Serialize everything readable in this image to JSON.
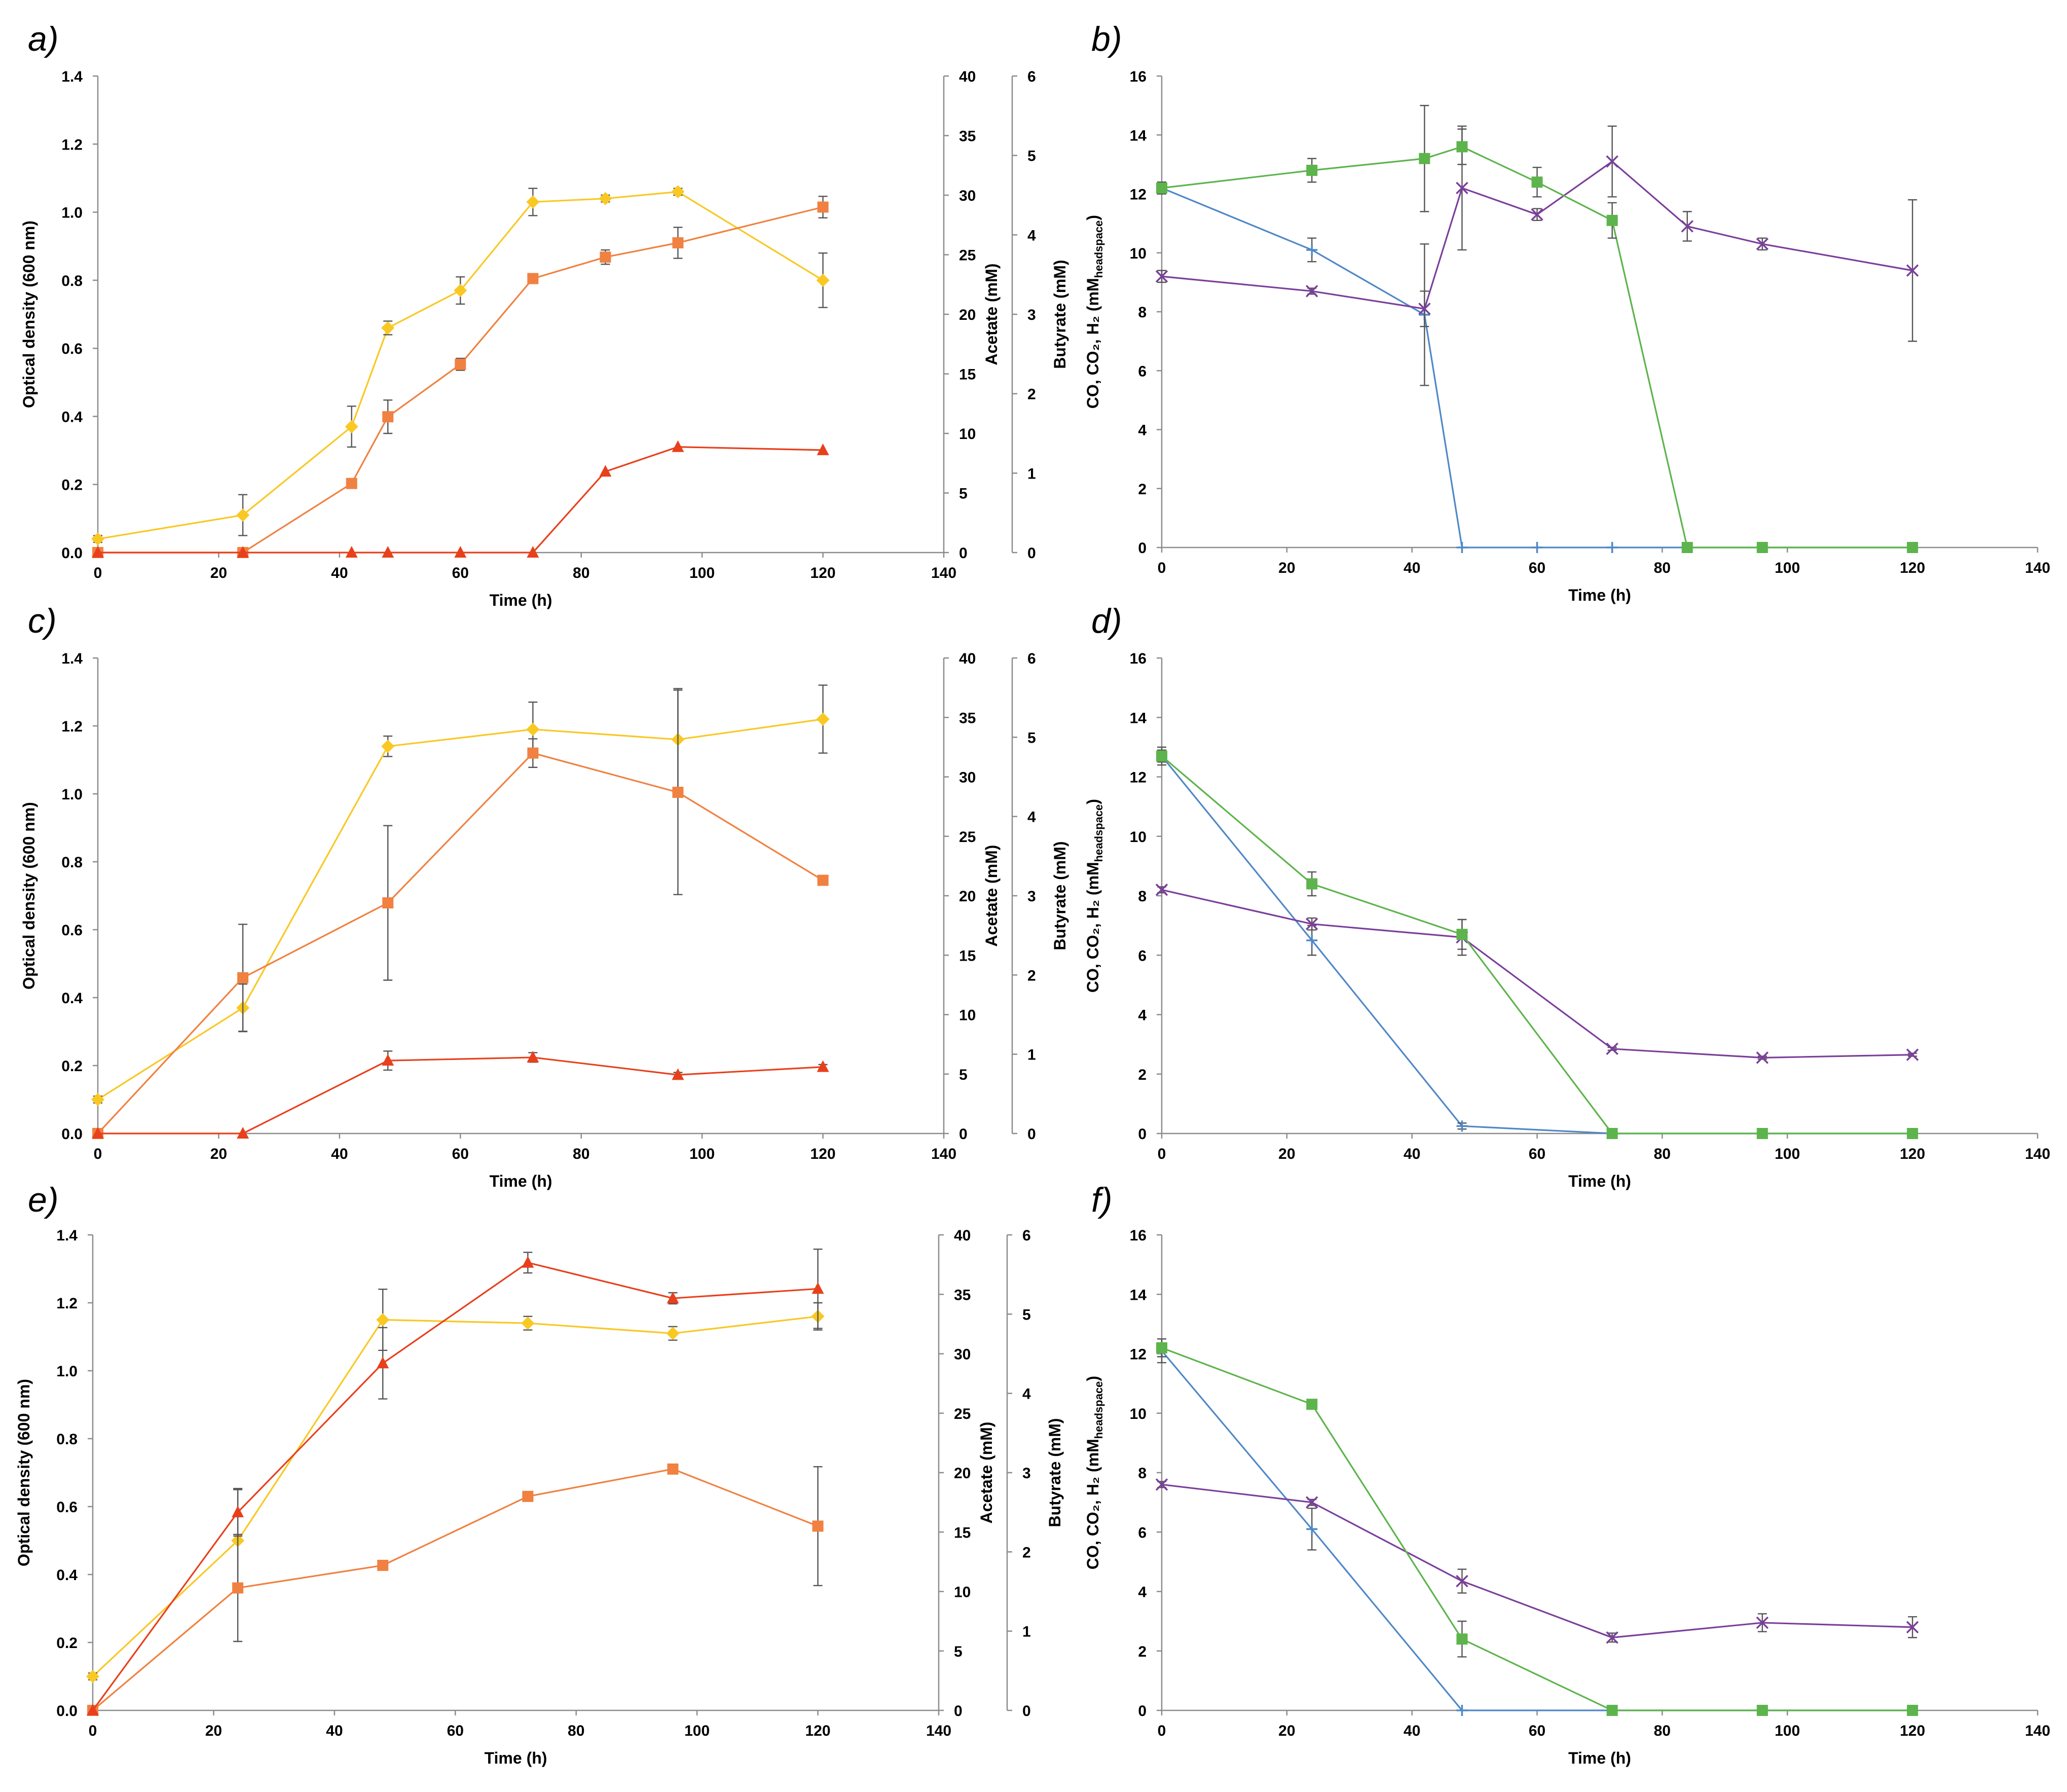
{
  "figure_title": "",
  "colors": {
    "biomass": "#F9C823",
    "acetate": "#F08141",
    "butyrate": "#E8401C",
    "co": "#4F88C7",
    "co2": "#7B3F9B",
    "h2": "#5DB44C",
    "axis": "#8C8C8C",
    "errbar": "#555555"
  },
  "chart_data": [
    {
      "panel": "a)",
      "type": "line",
      "xlabel": "Time (h)",
      "xlim": [
        0,
        140
      ],
      "xticks": [
        "0",
        "20",
        "40",
        "60",
        "80",
        "100",
        "120",
        "140"
      ],
      "axes": {
        "left": {
          "label": "Optical density (600 nm)",
          "lim": [
            0,
            1.4
          ],
          "ticks": [
            "0.0",
            "0.2",
            "0.4",
            "0.6",
            "0.8",
            "1.0",
            "1.2",
            "1.4"
          ]
        },
        "right1": {
          "label": "Acetate (mM)",
          "lim": [
            0,
            40
          ],
          "ticks": [
            "0",
            "5",
            "10",
            "15",
            "20",
            "25",
            "30",
            "35",
            "40"
          ]
        },
        "right2": {
          "label": "Butyrate (mM)",
          "lim": [
            0,
            6
          ],
          "ticks": [
            "0",
            "1",
            "2",
            "3",
            "4",
            "5",
            "6"
          ]
        }
      },
      "series": [
        {
          "name": "Optical density",
          "axis": "left",
          "color": "#F9C823",
          "marker": "diamond",
          "x": [
            0,
            24,
            42,
            48,
            60,
            72,
            84,
            96,
            120
          ],
          "y": [
            0.04,
            0.11,
            0.37,
            0.66,
            0.77,
            1.03,
            1.04,
            1.06,
            0.8
          ],
          "err": [
            0.01,
            0.06,
            0.06,
            0.02,
            0.04,
            0.04,
            0.01,
            0.01,
            0.08
          ]
        },
        {
          "name": "Acetate",
          "axis": "right1",
          "color": "#F08141",
          "marker": "square",
          "x": [
            0,
            24,
            42,
            48,
            60,
            72,
            84,
            96,
            120
          ],
          "y": [
            0,
            0,
            5.8,
            11.4,
            15.8,
            23.0,
            24.8,
            26.0,
            29.0
          ],
          "err": [
            0,
            0,
            0.3,
            1.4,
            0.5,
            0.3,
            0.6,
            1.3,
            0.9
          ]
        },
        {
          "name": "Butyrate",
          "axis": "right2",
          "color": "#E8401C",
          "marker": "triangle",
          "x": [
            0,
            24,
            42,
            48,
            60,
            72,
            84,
            96,
            120
          ],
          "y": [
            0,
            0,
            0,
            0,
            0,
            0,
            1.02,
            1.33,
            1.29
          ],
          "err": [
            0,
            0,
            0,
            0,
            0,
            0,
            0,
            0,
            0
          ]
        }
      ]
    },
    {
      "panel": "b)",
      "type": "line",
      "xlabel": "Time (h)",
      "xlim": [
        0,
        140
      ],
      "xticks": [
        "0",
        "20",
        "40",
        "60",
        "80",
        "100",
        "120",
        "140"
      ],
      "axes": {
        "left": {
          "label": "CO, CO₂, H₂ (mMheadspace)",
          "lim": [
            0,
            16
          ],
          "ticks": [
            "0",
            "2",
            "4",
            "6",
            "8",
            "10",
            "12",
            "14",
            "16"
          ]
        }
      },
      "series": [
        {
          "name": "CO",
          "axis": "left",
          "color": "#4F88C7",
          "marker": "plus",
          "x": [
            0,
            24,
            42,
            48,
            60,
            72,
            84,
            96,
            120
          ],
          "y": [
            12.2,
            10.1,
            7.9,
            0,
            0,
            0,
            0,
            0,
            0
          ],
          "err": [
            0,
            0.4,
            2.4,
            0,
            0,
            0,
            0,
            0,
            0
          ]
        },
        {
          "name": "CO2",
          "axis": "left",
          "color": "#7B3F9B",
          "marker": "cross",
          "x": [
            0,
            24,
            42,
            48,
            60,
            72,
            84,
            96,
            120
          ],
          "y": [
            9.2,
            8.7,
            8.1,
            12.2,
            11.3,
            13.1,
            10.9,
            10.3,
            9.4
          ],
          "err": [
            0.2,
            0.1,
            0.6,
            2.1,
            0.2,
            1.2,
            0.5,
            0.2,
            2.4
          ]
        },
        {
          "name": "H2",
          "axis": "left",
          "color": "#5DB44C",
          "marker": "square",
          "x": [
            0,
            24,
            42,
            48,
            60,
            72,
            84,
            96,
            120
          ],
          "y": [
            12.2,
            12.8,
            13.2,
            13.6,
            12.4,
            11.1,
            0,
            0,
            0
          ],
          "err": [
            0.2,
            0.4,
            1.8,
            0.6,
            0.5,
            0.6,
            0,
            0,
            0
          ]
        }
      ]
    },
    {
      "panel": "c)",
      "type": "line",
      "xlabel": "Time (h)",
      "xlim": [
        0,
        140
      ],
      "xticks": [
        "0",
        "20",
        "40",
        "60",
        "80",
        "100",
        "120",
        "140"
      ],
      "axes": {
        "left": {
          "label": "Optical density (600 nm)",
          "lim": [
            0,
            1.4
          ],
          "ticks": [
            "0.0",
            "0.2",
            "0.4",
            "0.6",
            "0.8",
            "1.0",
            "1.2",
            "1.4"
          ]
        },
        "right1": {
          "label": "Acetate (mM)",
          "lim": [
            0,
            40
          ],
          "ticks": [
            "0",
            "5",
            "10",
            "15",
            "20",
            "25",
            "30",
            "35",
            "40"
          ]
        },
        "right2": {
          "label": "Butyrate (mM)",
          "lim": [
            0,
            6
          ],
          "ticks": [
            "0",
            "1",
            "2",
            "3",
            "4",
            "5",
            "6"
          ]
        }
      },
      "series": [
        {
          "name": "Optical density",
          "axis": "left",
          "color": "#F9C823",
          "marker": "diamond",
          "x": [
            0,
            24,
            48,
            72,
            96,
            120
          ],
          "y": [
            0.1,
            0.37,
            1.14,
            1.19,
            1.16,
            1.22
          ],
          "err": [
            0.01,
            0.07,
            0.03,
            0.08,
            0.15,
            0.1
          ]
        },
        {
          "name": "Acetate",
          "axis": "right1",
          "color": "#F08141",
          "marker": "square",
          "x": [
            0,
            24,
            48,
            72,
            96,
            120
          ],
          "y": [
            0,
            13.1,
            19.4,
            32.0,
            28.7,
            21.3
          ],
          "err": [
            0,
            4.5,
            6.5,
            1.2,
            8.6,
            0.2
          ]
        },
        {
          "name": "Butyrate",
          "axis": "right2",
          "color": "#E8401C",
          "marker": "triangle",
          "x": [
            0,
            24,
            48,
            72,
            96,
            120
          ],
          "y": [
            0,
            0,
            0.92,
            0.96,
            0.74,
            0.84
          ],
          "err": [
            0,
            0,
            0.12,
            0.06,
            0.03,
            0.03
          ]
        }
      ]
    },
    {
      "panel": "d)",
      "type": "line",
      "xlabel": "Time (h)",
      "xlim": [
        0,
        140
      ],
      "xticks": [
        "0",
        "20",
        "40",
        "60",
        "80",
        "100",
        "120",
        "140"
      ],
      "axes": {
        "left": {
          "label": "CO, CO₂, H₂ (mMheadspace)",
          "lim": [
            0,
            16
          ],
          "ticks": [
            "0",
            "2",
            "4",
            "6",
            "8",
            "10",
            "12",
            "14",
            "16"
          ]
        }
      },
      "series": [
        {
          "name": "CO",
          "axis": "left",
          "color": "#4F88C7",
          "marker": "plus",
          "x": [
            0,
            24,
            48,
            72,
            96,
            120
          ],
          "y": [
            12.7,
            6.5,
            0.25,
            0,
            0,
            0
          ],
          "err": [
            0.3,
            0.5,
            0.1,
            0,
            0,
            0
          ]
        },
        {
          "name": "CO2",
          "axis": "left",
          "color": "#7B3F9B",
          "marker": "cross",
          "x": [
            0,
            24,
            48,
            72,
            96,
            120
          ],
          "y": [
            8.2,
            7.05,
            6.6,
            2.85,
            2.55,
            2.65
          ],
          "err": [
            0.1,
            0.2,
            0.6,
            0.05,
            0.05,
            0.05
          ]
        },
        {
          "name": "H2",
          "axis": "left",
          "color": "#5DB44C",
          "marker": "square",
          "x": [
            0,
            24,
            48,
            72,
            96,
            120
          ],
          "y": [
            12.7,
            8.4,
            6.7,
            0,
            0,
            0
          ],
          "err": [
            0.2,
            0.4,
            0.5,
            0,
            0,
            0
          ]
        }
      ]
    },
    {
      "panel": "e)",
      "type": "line",
      "xlabel": "Time (h)",
      "xlim": [
        0,
        140
      ],
      "xticks": [
        "0",
        "20",
        "40",
        "60",
        "80",
        "100",
        "120",
        "140"
      ],
      "axes": {
        "left": {
          "label": "Optical density (600 nm)",
          "lim": [
            0,
            1.4
          ],
          "ticks": [
            "0.0",
            "0.2",
            "0.4",
            "0.6",
            "0.8",
            "1.0",
            "1.2",
            "1.4"
          ]
        },
        "right1": {
          "label": "Acetate (mM)",
          "lim": [
            0,
            40
          ],
          "ticks": [
            "0",
            "5",
            "10",
            "15",
            "20",
            "25",
            "30",
            "35",
            "40"
          ]
        },
        "right2": {
          "label": "Butyrate (mM)",
          "lim": [
            0,
            6
          ],
          "ticks": [
            "0",
            "1",
            "2",
            "3",
            "4",
            "5",
            "6"
          ]
        }
      },
      "series": [
        {
          "name": "Optical density",
          "axis": "left",
          "color": "#F9C823",
          "marker": "diamond",
          "x": [
            0,
            24,
            48,
            72,
            96,
            120
          ],
          "y": [
            0.1,
            0.5,
            1.15,
            1.14,
            1.11,
            1.16
          ],
          "err": [
            0.01,
            0.15,
            0.09,
            0.02,
            0.02,
            0.04
          ]
        },
        {
          "name": "Acetate",
          "axis": "right1",
          "color": "#F08141",
          "marker": "square",
          "x": [
            0,
            24,
            48,
            72,
            96,
            120
          ],
          "y": [
            0,
            10.3,
            12.2,
            18.0,
            20.3,
            15.5
          ],
          "err": [
            0,
            4.5,
            0.2,
            0.2,
            0.2,
            5.0
          ]
        },
        {
          "name": "Butyrate",
          "axis": "right2",
          "color": "#E8401C",
          "marker": "triangle",
          "x": [
            0,
            24,
            48,
            72,
            96,
            120
          ],
          "y": [
            0,
            2.5,
            4.38,
            5.65,
            5.2,
            5.32
          ],
          "err": [
            0,
            0.3,
            0.45,
            0.13,
            0.07,
            0.5
          ]
        }
      ]
    },
    {
      "panel": "f)",
      "type": "line",
      "xlabel": "Time (h)",
      "xlim": [
        0,
        140
      ],
      "xticks": [
        "0",
        "20",
        "40",
        "60",
        "80",
        "100",
        "120",
        "140"
      ],
      "axes": {
        "left": {
          "label": "CO, CO₂, H₂ (mMheadspace)",
          "lim": [
            0,
            16
          ],
          "ticks": [
            "0",
            "2",
            "4",
            "6",
            "8",
            "10",
            "12",
            "14",
            "16"
          ]
        }
      },
      "series": [
        {
          "name": "CO",
          "axis": "left",
          "color": "#4F88C7",
          "marker": "plus",
          "x": [
            0,
            24,
            48,
            72,
            96,
            120
          ],
          "y": [
            12.1,
            6.1,
            0,
            0,
            0,
            0
          ],
          "err": [
            0.4,
            0.7,
            0,
            0,
            0,
            0
          ]
        },
        {
          "name": "CO2",
          "axis": "left",
          "color": "#7B3F9B",
          "marker": "cross",
          "x": [
            0,
            24,
            48,
            72,
            96,
            120
          ],
          "y": [
            7.6,
            7.0,
            4.35,
            2.45,
            2.95,
            2.8
          ],
          "err": [
            0.1,
            0.1,
            0.4,
            0.15,
            0.3,
            0.35
          ]
        },
        {
          "name": "H2",
          "axis": "left",
          "color": "#5DB44C",
          "marker": "square",
          "x": [
            0,
            24,
            48,
            72,
            96,
            120
          ],
          "y": [
            12.2,
            10.3,
            2.4,
            0,
            0,
            0
          ],
          "err": [
            0.3,
            0.1,
            0.6,
            0,
            0,
            0
          ]
        }
      ]
    }
  ]
}
